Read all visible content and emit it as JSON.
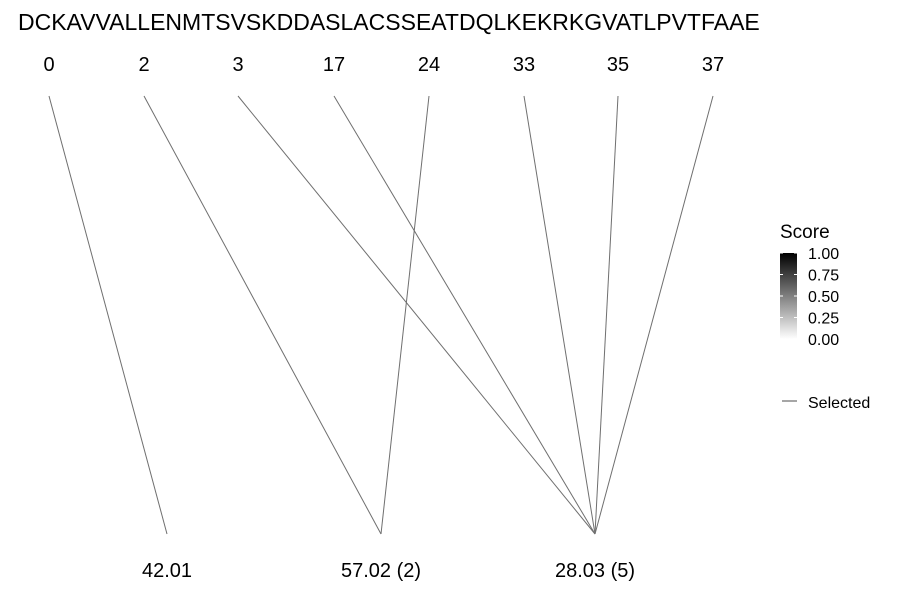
{
  "sequence": "DCKAVVALLENMTSVSKDDASLACSSEATDQLKEKRKGVATLPVTFAAE",
  "top_labels": [
    "0",
    "2",
    "3",
    "17",
    "24",
    "33",
    "35",
    "37"
  ],
  "bottom_labels": [
    "42.01",
    "57.02 (2)",
    "28.03 (5)"
  ],
  "links": [
    {
      "from": 0,
      "to": 0
    },
    {
      "from": 1,
      "to": 1
    },
    {
      "from": 2,
      "to": 2
    },
    {
      "from": 3,
      "to": 2
    },
    {
      "from": 4,
      "to": 1
    },
    {
      "from": 5,
      "to": 2
    },
    {
      "from": 6,
      "to": 2
    },
    {
      "from": 7,
      "to": 2
    }
  ],
  "legend": {
    "title": "Score",
    "ticks": [
      "1.00",
      "0.75",
      "0.50",
      "0.25",
      "0.00"
    ],
    "gradient_colors": [
      "#000000",
      "#ffffff"
    ],
    "selected_label": "Selected"
  },
  "colors": {
    "line": "#6f6f6f"
  }
}
